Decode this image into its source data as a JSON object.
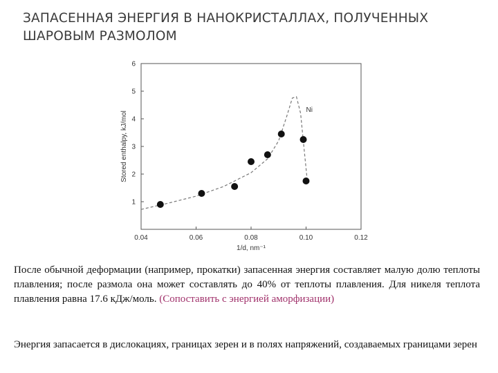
{
  "title": "ЗАПАСЕННАЯ ЭНЕРГИЯ В НАНОКРИСТАЛЛАХ, ПОЛУЧЕННЫХ ШАРОВЫМ РАЗМОЛОМ",
  "chart_data": {
    "type": "scatter",
    "xlabel": "1/d, nm⁻¹",
    "ylabel": "Stored enthalpy, kJ/mol",
    "annotation": "Ni",
    "xlim": [
      0.04,
      0.12
    ],
    "ylim": [
      0,
      6
    ],
    "x_ticks": [
      "0.04",
      "0.06",
      "0.08",
      "0.10",
      "0.12"
    ],
    "y_ticks": [
      "1",
      "2",
      "3",
      "4",
      "5",
      "6"
    ],
    "series": [
      {
        "points": [
          {
            "x": 0.047,
            "y": 0.9
          },
          {
            "x": 0.062,
            "y": 1.3
          },
          {
            "x": 0.074,
            "y": 1.55
          },
          {
            "x": 0.08,
            "y": 2.45
          },
          {
            "x": 0.086,
            "y": 2.7
          },
          {
            "x": 0.091,
            "y": 3.45
          },
          {
            "x": 0.099,
            "y": 3.25
          },
          {
            "x": 0.1,
            "y": 1.75
          }
        ]
      }
    ],
    "fit_curve": [
      {
        "x": 0.04,
        "y": 0.72
      },
      {
        "x": 0.05,
        "y": 0.95
      },
      {
        "x": 0.06,
        "y": 1.2
      },
      {
        "x": 0.07,
        "y": 1.55
      },
      {
        "x": 0.08,
        "y": 2.05
      },
      {
        "x": 0.086,
        "y": 2.55
      },
      {
        "x": 0.09,
        "y": 3.2
      },
      {
        "x": 0.093,
        "y": 4.1
      },
      {
        "x": 0.095,
        "y": 4.75
      },
      {
        "x": 0.0965,
        "y": 4.8
      },
      {
        "x": 0.098,
        "y": 4.2
      },
      {
        "x": 0.099,
        "y": 3.2
      },
      {
        "x": 0.1,
        "y": 2.2
      },
      {
        "x": 0.1005,
        "y": 1.7
      }
    ]
  },
  "paragraph1": {
    "text": "После обычной деформации (например, прокатки) запасенная энергия составляет малую долю теплоты плавления; после размола она может составлять до 40% от теплоты плавления. Для никеля теплота плавления равна 17.6 кДж/моль.",
    "link_text": "(Сопоставить с энергией аморфизации)",
    "link_color": "#a0306a"
  },
  "paragraph2": "Энергия запасается в дислокациях, границах зерен и в полях напряжений, создаваемых границами зерен"
}
